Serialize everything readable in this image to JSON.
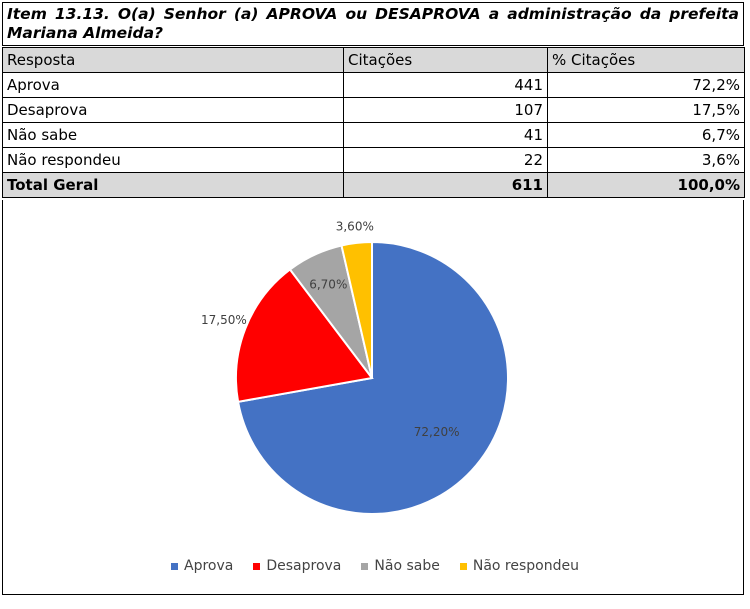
{
  "title": "Item 13.13. O(a) Senhor (a) APROVA ou DESAPROVA a administração da prefeita Mariana Almeida?",
  "table": {
    "headers": [
      "Resposta",
      "Citações",
      "% Citações"
    ],
    "rows": [
      {
        "resposta": "Aprova",
        "citacoes": "441",
        "pct": "72,2%"
      },
      {
        "resposta": "Desaprova",
        "citacoes": "107",
        "pct": "17,5%"
      },
      {
        "resposta": "Não sabe",
        "citacoes": "41",
        "pct": "6,7%"
      },
      {
        "resposta": "Não respondeu",
        "citacoes": "22",
        "pct": "3,6%"
      }
    ],
    "total": {
      "resposta": "Total Geral",
      "citacoes": "611",
      "pct": "100,0%"
    }
  },
  "chart_data": {
    "type": "pie",
    "categories": [
      "Aprova",
      "Desaprova",
      "Não sabe",
      "Não respondeu"
    ],
    "values": [
      72.2,
      17.5,
      6.7,
      3.6
    ],
    "labels": [
      "72,20%",
      "17,50%",
      "6,70%",
      "3,60%"
    ],
    "colors": [
      "#4472c4",
      "#ff0000",
      "#a5a5a5",
      "#ffc000"
    ],
    "legend_position": "bottom"
  }
}
